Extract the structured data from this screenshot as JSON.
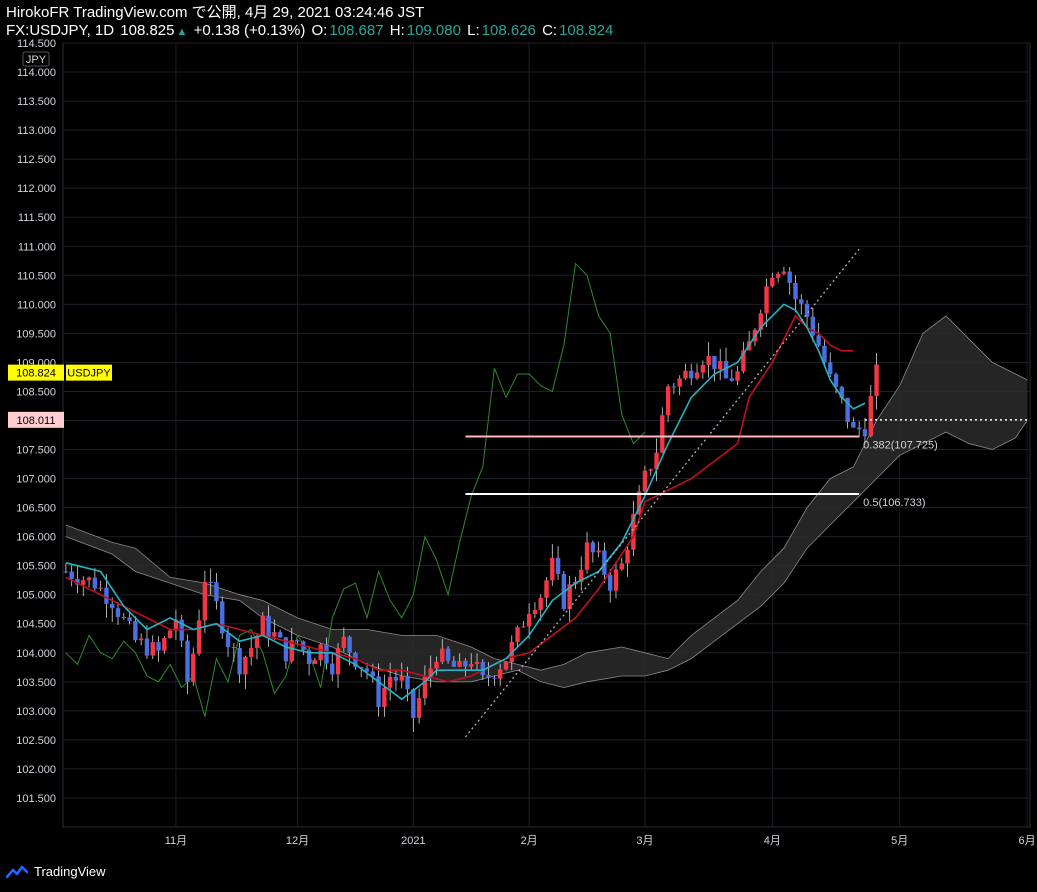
{
  "header": {
    "line1": "HirokoFR TradingView.com で公開, 4月 29, 2021 03:24:46 JST",
    "symbol": "FX:USDJPY, 1D",
    "last": "108.825",
    "change": "+0.138 (+0.13%)",
    "o_label": "O:",
    "o_value": "108.687",
    "h_label": "H:",
    "h_value": "109.080",
    "l_label": "L:",
    "l_value": "108.626",
    "c_label": "C:",
    "c_value": "108.824"
  },
  "footer": {
    "brand": "TradingView"
  },
  "chart_data": {
    "type": "candlestick",
    "currency_label": "JPY",
    "price_badge": {
      "value": "108.824",
      "label": "USDJPY",
      "color": "#ffff00"
    },
    "level_badge": {
      "value": "108.011",
      "color": "#ffcdd2"
    },
    "y_axis": {
      "min": 101.0,
      "max": 114.5,
      "ticks": [
        "114.500",
        "114.000",
        "113.500",
        "113.000",
        "112.500",
        "112.000",
        "111.500",
        "111.000",
        "110.500",
        "110.000",
        "109.500",
        "109.000",
        "108.500",
        "108.000",
        "107.500",
        "107.000",
        "106.500",
        "106.000",
        "105.500",
        "105.000",
        "104.500",
        "104.000",
        "103.500",
        "103.000",
        "102.500",
        "102.000",
        "101.500"
      ]
    },
    "x_axis": {
      "ticks": [
        {
          "label": "11月",
          "bar": 19
        },
        {
          "label": "12月",
          "bar": 40
        },
        {
          "label": "2021",
          "bar": 60
        },
        {
          "label": "2月",
          "bar": 80
        },
        {
          "label": "3月",
          "bar": 100
        },
        {
          "label": "4月",
          "bar": 122
        },
        {
          "label": "5月",
          "bar": 144
        },
        {
          "label": "6月",
          "bar": 166
        }
      ],
      "total_bars": 167
    },
    "fib_levels": [
      {
        "ratio": "0.382",
        "price": 107.725,
        "label": "0.382(107.725)",
        "from_bar": 69,
        "to_bar": 137
      },
      {
        "ratio": "0.5",
        "price": 106.733,
        "label": "0.5(106.733)",
        "from_bar": 69,
        "to_bar": 137
      }
    ],
    "trendline": {
      "from": [
        69,
        102.55
      ],
      "to": [
        137,
        110.95
      ]
    },
    "horizontal_level": {
      "price": 108.011,
      "from_bar": 138
    },
    "close_path": [
      [
        0,
        105.4
      ],
      [
        5,
        105.2
      ],
      [
        8,
        104.9
      ],
      [
        12,
        104.2
      ],
      [
        16,
        104.0
      ],
      [
        19,
        104.6
      ],
      [
        21,
        103.5
      ],
      [
        22,
        104.0
      ],
      [
        24,
        105.3
      ],
      [
        26,
        104.8
      ],
      [
        28,
        104.2
      ],
      [
        30,
        103.8
      ],
      [
        32,
        104.1
      ],
      [
        34,
        104.5
      ],
      [
        36,
        104.3
      ],
      [
        38,
        104.0
      ],
      [
        40,
        104.2
      ],
      [
        42,
        103.9
      ],
      [
        44,
        104.1
      ],
      [
        46,
        103.8
      ],
      [
        48,
        104.2
      ],
      [
        50,
        103.9
      ],
      [
        52,
        103.7
      ],
      [
        54,
        103.2
      ],
      [
        56,
        103.6
      ],
      [
        58,
        103.5
      ],
      [
        60,
        102.9
      ],
      [
        62,
        103.5
      ],
      [
        64,
        104.0
      ],
      [
        66,
        103.8
      ],
      [
        68,
        103.7
      ],
      [
        70,
        103.9
      ],
      [
        72,
        103.5
      ],
      [
        74,
        103.7
      ],
      [
        76,
        103.9
      ],
      [
        78,
        104.3
      ],
      [
        80,
        104.8
      ],
      [
        82,
        105.0
      ],
      [
        84,
        105.5
      ],
      [
        86,
        104.9
      ],
      [
        88,
        105.3
      ],
      [
        90,
        105.8
      ],
      [
        92,
        105.6
      ],
      [
        94,
        105.2
      ],
      [
        96,
        105.5
      ],
      [
        98,
        106.3
      ],
      [
        100,
        107.0
      ],
      [
        102,
        107.5
      ],
      [
        104,
        108.6
      ],
      [
        106,
        108.7
      ],
      [
        108,
        108.9
      ],
      [
        110,
        109.1
      ],
      [
        112,
        109.0
      ],
      [
        114,
        108.7
      ],
      [
        116,
        108.8
      ],
      [
        118,
        109.3
      ],
      [
        120,
        110.0
      ],
      [
        122,
        110.6
      ],
      [
        124,
        110.7
      ],
      [
        126,
        110.1
      ],
      [
        128,
        109.8
      ],
      [
        130,
        109.3
      ],
      [
        132,
        108.7
      ],
      [
        134,
        108.3
      ],
      [
        136,
        107.8
      ],
      [
        138,
        107.9
      ],
      [
        140,
        108.8
      ]
    ],
    "tenkan_path": [
      [
        0,
        105.55
      ],
      [
        6,
        105.4
      ],
      [
        10,
        104.8
      ],
      [
        14,
        104.4
      ],
      [
        18,
        104.6
      ],
      [
        22,
        104.4
      ],
      [
        26,
        104.5
      ],
      [
        30,
        104.2
      ],
      [
        34,
        104.3
      ],
      [
        38,
        104.1
      ],
      [
        42,
        104.0
      ],
      [
        46,
        104.0
      ],
      [
        50,
        103.8
      ],
      [
        54,
        103.5
      ],
      [
        58,
        103.2
      ],
      [
        62,
        103.5
      ],
      [
        64,
        103.7
      ],
      [
        68,
        103.7
      ],
      [
        72,
        103.7
      ],
      [
        76,
        103.9
      ],
      [
        80,
        104.3
      ],
      [
        84,
        104.9
      ],
      [
        88,
        105.2
      ],
      [
        92,
        105.4
      ],
      [
        96,
        105.9
      ],
      [
        100,
        106.7
      ],
      [
        104,
        107.6
      ],
      [
        108,
        108.4
      ],
      [
        112,
        108.8
      ],
      [
        116,
        109.0
      ],
      [
        120,
        109.6
      ],
      [
        122,
        109.8
      ],
      [
        124,
        110.0
      ],
      [
        126,
        109.9
      ],
      [
        128,
        109.6
      ],
      [
        130,
        109.2
      ],
      [
        132,
        108.7
      ],
      [
        134,
        108.4
      ],
      [
        136,
        108.2
      ],
      [
        138,
        108.3
      ]
    ],
    "kijun_path": [
      [
        0,
        105.3
      ],
      [
        6,
        105.0
      ],
      [
        10,
        104.8
      ],
      [
        14,
        104.6
      ],
      [
        18,
        104.4
      ],
      [
        22,
        104.4
      ],
      [
        26,
        104.5
      ],
      [
        30,
        104.4
      ],
      [
        34,
        104.3
      ],
      [
        38,
        104.2
      ],
      [
        42,
        104.1
      ],
      [
        46,
        104.0
      ],
      [
        50,
        103.9
      ],
      [
        54,
        103.7
      ],
      [
        58,
        103.7
      ],
      [
        62,
        103.6
      ],
      [
        66,
        103.5
      ],
      [
        70,
        103.6
      ],
      [
        72,
        103.7
      ],
      [
        76,
        103.9
      ],
      [
        80,
        104.0
      ],
      [
        84,
        104.3
      ],
      [
        88,
        104.6
      ],
      [
        92,
        105.1
      ],
      [
        96,
        105.7
      ],
      [
        98,
        106.0
      ],
      [
        100,
        106.6
      ],
      [
        104,
        106.8
      ],
      [
        108,
        107.0
      ],
      [
        112,
        107.3
      ],
      [
        116,
        107.6
      ],
      [
        118,
        108.4
      ],
      [
        120,
        108.7
      ],
      [
        122,
        109.0
      ],
      [
        124,
        109.4
      ],
      [
        126,
        109.8
      ],
      [
        128,
        109.6
      ],
      [
        130,
        109.5
      ],
      [
        132,
        109.3
      ],
      [
        134,
        109.2
      ],
      [
        136,
        109.2
      ]
    ],
    "chikou_path": [
      [
        0,
        104.0
      ],
      [
        2,
        103.8
      ],
      [
        4,
        104.3
      ],
      [
        6,
        104.0
      ],
      [
        8,
        103.9
      ],
      [
        10,
        104.2
      ],
      [
        12,
        104.0
      ],
      [
        14,
        103.6
      ],
      [
        16,
        103.5
      ],
      [
        18,
        103.8
      ],
      [
        20,
        103.4
      ],
      [
        22,
        103.6
      ],
      [
        24,
        102.9
      ],
      [
        26,
        103.9
      ],
      [
        28,
        103.5
      ],
      [
        30,
        104.3
      ],
      [
        32,
        104.4
      ],
      [
        34,
        104.0
      ],
      [
        36,
        103.3
      ],
      [
        38,
        103.6
      ],
      [
        40,
        104.3
      ],
      [
        42,
        104.0
      ],
      [
        44,
        103.4
      ],
      [
        46,
        104.6
      ],
      [
        48,
        105.1
      ],
      [
        50,
        105.2
      ],
      [
        52,
        104.6
      ],
      [
        54,
        105.4
      ],
      [
        56,
        104.9
      ],
      [
        58,
        104.6
      ],
      [
        60,
        105.0
      ],
      [
        62,
        106.0
      ],
      [
        64,
        105.6
      ],
      [
        66,
        105.0
      ],
      [
        68,
        105.9
      ],
      [
        70,
        106.7
      ],
      [
        72,
        107.2
      ],
      [
        74,
        108.9
      ],
      [
        76,
        108.4
      ],
      [
        78,
        108.8
      ],
      [
        80,
        108.8
      ],
      [
        82,
        108.6
      ],
      [
        84,
        108.5
      ],
      [
        86,
        109.3
      ],
      [
        88,
        110.7
      ],
      [
        90,
        110.5
      ],
      [
        92,
        109.8
      ],
      [
        94,
        109.5
      ],
      [
        96,
        108.1
      ],
      [
        98,
        107.6
      ],
      [
        100,
        107.8
      ]
    ],
    "cloud": {
      "upper": [
        [
          0,
          106.2
        ],
        [
          8,
          105.9
        ],
        [
          12,
          105.8
        ],
        [
          18,
          105.3
        ],
        [
          24,
          105.2
        ],
        [
          30,
          105.0
        ],
        [
          34,
          104.9
        ],
        [
          40,
          104.6
        ],
        [
          46,
          104.4
        ],
        [
          52,
          104.4
        ],
        [
          58,
          104.3
        ],
        [
          64,
          104.3
        ],
        [
          70,
          104.1
        ],
        [
          74,
          103.9
        ],
        [
          78,
          103.8
        ],
        [
          82,
          103.7
        ],
        [
          86,
          103.8
        ],
        [
          90,
          104.0
        ],
        [
          96,
          104.1
        ],
        [
          100,
          104.0
        ],
        [
          104,
          103.9
        ],
        [
          108,
          104.3
        ],
        [
          112,
          104.6
        ],
        [
          116,
          104.9
        ],
        [
          120,
          105.4
        ],
        [
          124,
          105.8
        ],
        [
          128,
          106.5
        ],
        [
          132,
          107.0
        ],
        [
          136,
          107.2
        ],
        [
          140,
          108.0
        ],
        [
          144,
          108.6
        ],
        [
          148,
          109.5
        ],
        [
          152,
          109.8
        ],
        [
          156,
          109.4
        ],
        [
          160,
          109.0
        ],
        [
          164,
          108.8
        ],
        [
          166,
          108.7
        ]
      ],
      "lower": [
        [
          0,
          106.0
        ],
        [
          8,
          105.7
        ],
        [
          12,
          105.4
        ],
        [
          18,
          105.2
        ],
        [
          24,
          105.0
        ],
        [
          30,
          104.9
        ],
        [
          34,
          104.6
        ],
        [
          40,
          104.3
        ],
        [
          46,
          104.1
        ],
        [
          52,
          103.8
        ],
        [
          58,
          103.6
        ],
        [
          64,
          103.5
        ],
        [
          70,
          103.5
        ],
        [
          74,
          103.6
        ],
        [
          78,
          103.7
        ],
        [
          82,
          103.5
        ],
        [
          86,
          103.4
        ],
        [
          90,
          103.5
        ],
        [
          96,
          103.6
        ],
        [
          100,
          103.6
        ],
        [
          104,
          103.7
        ],
        [
          108,
          103.9
        ],
        [
          112,
          104.2
        ],
        [
          116,
          104.5
        ],
        [
          120,
          104.8
        ],
        [
          124,
          105.2
        ],
        [
          128,
          105.8
        ],
        [
          132,
          106.2
        ],
        [
          136,
          106.6
        ],
        [
          140,
          107.0
        ],
        [
          144,
          107.4
        ],
        [
          148,
          107.6
        ],
        [
          152,
          107.8
        ],
        [
          156,
          107.6
        ],
        [
          160,
          107.5
        ],
        [
          164,
          107.7
        ],
        [
          166,
          108.0
        ]
      ]
    }
  }
}
